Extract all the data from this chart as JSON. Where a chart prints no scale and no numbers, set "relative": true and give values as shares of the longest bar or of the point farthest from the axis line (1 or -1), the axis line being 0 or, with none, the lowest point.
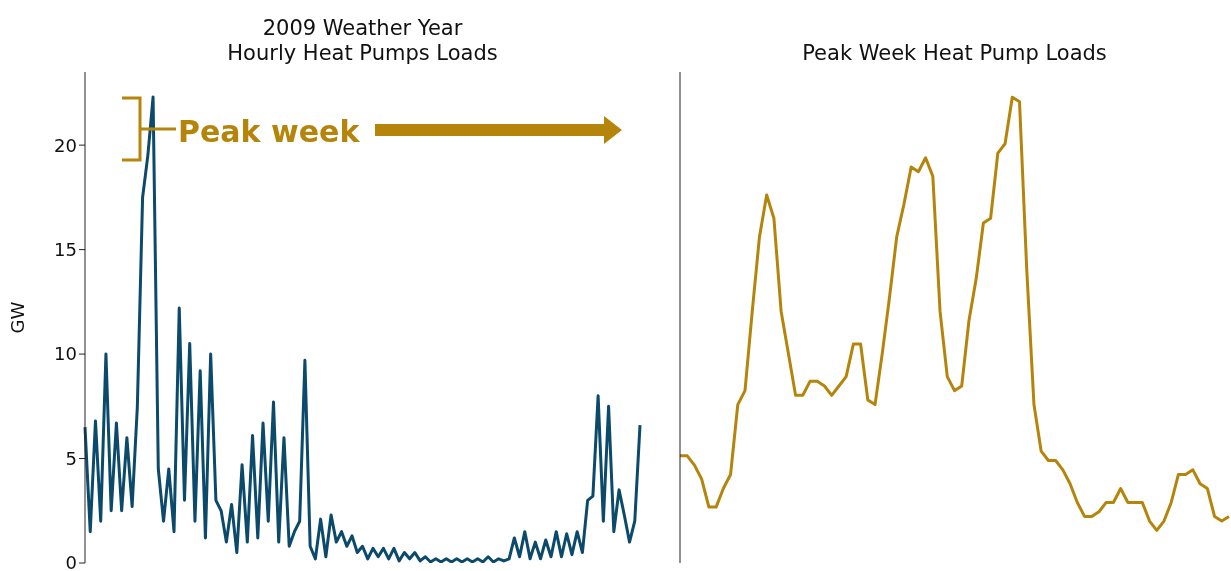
{
  "chart_data": [
    {
      "type": "line",
      "title": "2009 Weather Year\nHourly Heat Pumps Loads",
      "ylabel": "GW",
      "annotations": [
        "Peak week"
      ],
      "categories": [
        null,
        null,
        null,
        null,
        null,
        null,
        null,
        null,
        null,
        null,
        null,
        null,
        null,
        null,
        null,
        null,
        null,
        null,
        null,
        null,
        null,
        null,
        null,
        null,
        null,
        null,
        null,
        null,
        null,
        null,
        null,
        null,
        null,
        null,
        null,
        null,
        null,
        null,
        null,
        null,
        null,
        null,
        null,
        null,
        null,
        null,
        null,
        null,
        null,
        null,
        null,
        null,
        null,
        null,
        null,
        null,
        null,
        null,
        null,
        null,
        null,
        null,
        null,
        null,
        null,
        null,
        null,
        null,
        null,
        null,
        null,
        null,
        null,
        null,
        null,
        null,
        null,
        null,
        null,
        null,
        null,
        null,
        null,
        null,
        null,
        null,
        null,
        null,
        null,
        null,
        null,
        null,
        null,
        null,
        null,
        null,
        null,
        null,
        null,
        null,
        null,
        null,
        null,
        null,
        null,
        null,
        null
      ],
      "series": [
        {
          "color": "#0b4a6b",
          "values": [
            6.5,
            1.5,
            6.8,
            2,
            10,
            2.5,
            6.7,
            2.5,
            6,
            2.7,
            7.5,
            17.5,
            19.5,
            22.3,
            4.5,
            2,
            4.5,
            1.5,
            12.2,
            3,
            10.5,
            2,
            9.2,
            1.2,
            10,
            3,
            2.5,
            1,
            2.8,
            0.5,
            4.7,
            1,
            6.1,
            1.2,
            6.7,
            2,
            7.7,
            1,
            6,
            0.8,
            1.5,
            2,
            9.7,
            0.8,
            0.2,
            2.1,
            0.3,
            2.3,
            1,
            1.5,
            0.8,
            1.3,
            0.5,
            0.8,
            0.2,
            0.7,
            0.3,
            0.7,
            0.2,
            0.7,
            0.1,
            0.5,
            0.2,
            0.5,
            0.1,
            0.3,
            0.05,
            0.2,
            0.05,
            0.2,
            0.05,
            0.2,
            0.05,
            0.2,
            0.05,
            0.2,
            0.05,
            0.3,
            0.05,
            0.2,
            0.1,
            0.2,
            1.2,
            0.3,
            1.5,
            0.2,
            1,
            0.2,
            1.1,
            0.3,
            1.5,
            0.3,
            1.4,
            0.4,
            1.5,
            0.5,
            3,
            3.2,
            8,
            2,
            7.5,
            1.5,
            3.5,
            2.3,
            1,
            2,
            6.6
          ]
        }
      ],
      "ylim": [
        0,
        23.5
      ],
      "yticks": [
        0,
        5,
        10,
        15,
        20
      ],
      "grid": false,
      "legend": false,
      "marker": "none",
      "line_style": "solid"
    },
    {
      "type": "line",
      "title": "Peak Week Heat Pump Loads",
      "categories": [
        null,
        null,
        null,
        null,
        null,
        null,
        null,
        null,
        null,
        null,
        null,
        null,
        null,
        null,
        null,
        null,
        null,
        null,
        null,
        null,
        null,
        null,
        null,
        null,
        null,
        null,
        null,
        null,
        null,
        null,
        null,
        null,
        null,
        null,
        null,
        null,
        null,
        null,
        null,
        null,
        null,
        null,
        null,
        null,
        null,
        null,
        null,
        null,
        null,
        null,
        null,
        null,
        null,
        null,
        null,
        null,
        null,
        null,
        null,
        null,
        null,
        null,
        null,
        null,
        null,
        null,
        null,
        null,
        null,
        null,
        null,
        null,
        null,
        null,
        null,
        null,
        null
      ],
      "series": [
        {
          "color": "#b5850b",
          "values": [
            0.23,
            0.23,
            0.21,
            0.18,
            0.12,
            0.12,
            0.16,
            0.19,
            0.34,
            0.37,
            0.54,
            0.7,
            0.79,
            0.74,
            0.54,
            0.45,
            0.36,
            0.36,
            0.39,
            0.39,
            0.38,
            0.36,
            0.38,
            0.4,
            0.47,
            0.47,
            0.35,
            0.34,
            0.45,
            0.57,
            0.7,
            0.77,
            0.85,
            0.84,
            0.87,
            0.83,
            0.54,
            0.4,
            0.37,
            0.38,
            0.52,
            0.61,
            0.73,
            0.74,
            0.88,
            0.9,
            1,
            0.99,
            0.63,
            0.34,
            0.24,
            0.22,
            0.22,
            0.2,
            0.17,
            0.13,
            0.1,
            0.1,
            0.11,
            0.13,
            0.13,
            0.16,
            0.13,
            0.13,
            0.13,
            0.09,
            0.07,
            0.09,
            0.13,
            0.19,
            0.19,
            0.2,
            0.17,
            0.16,
            0.1,
            0.09,
            0.1
          ]
        }
      ],
      "relative": true,
      "grid": false,
      "legend": false,
      "marker": "none",
      "line_style": "solid"
    }
  ]
}
